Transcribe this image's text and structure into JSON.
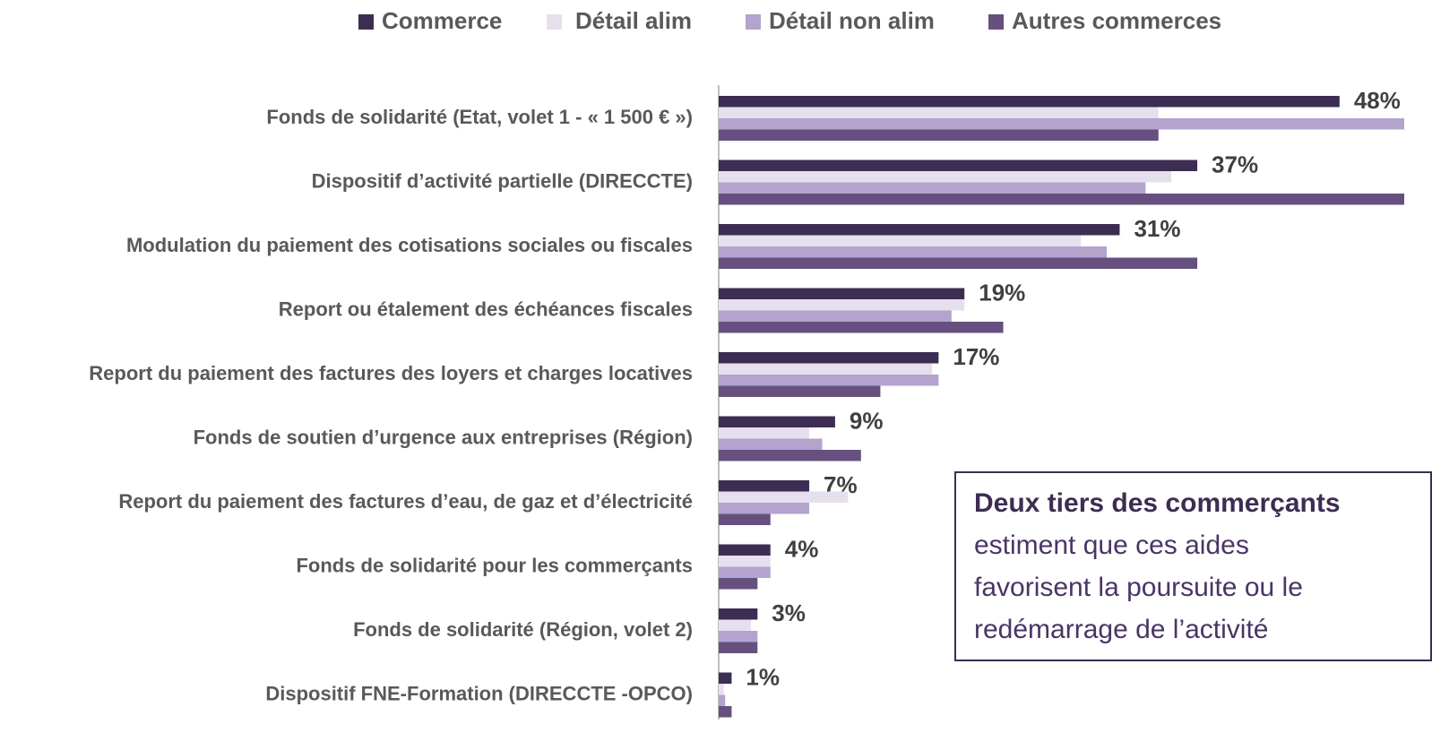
{
  "chart_data": {
    "type": "bar",
    "orientation": "horizontal",
    "categories": [
      "Fonds de solidarité (Etat, volet 1 - « 1 500 € »)",
      "Dispositif d’activité partielle (DIRECCTE)",
      "Modulation du paiement des cotisations sociales ou fiscales",
      "Report ou étalement des échéances fiscales",
      "Report du paiement des factures des loyers et charges locatives",
      "Fonds de soutien d’urgence aux entreprises (Région)",
      "Report du paiement des factures d’eau, de gaz et d’électricité",
      "Fonds de solidarité pour les commerçants",
      "Fonds de solidarité (Région, volet 2)",
      "Dispositif FNE-Formation (DIRECCTE -OPCO)"
    ],
    "series": [
      {
        "name": "Commerce",
        "color": "#3d2d52",
        "values": [
          48,
          37,
          31,
          19,
          17,
          9,
          7,
          4,
          3,
          1
        ],
        "value_labels": [
          "48%",
          "37%",
          "31%",
          "19%",
          "17%",
          "9%",
          "7%",
          "4%",
          "3%",
          "1%"
        ]
      },
      {
        "name": "Détail alim",
        "color": "#e6e0ee",
        "values": [
          34,
          35,
          28,
          19,
          16.5,
          7,
          10,
          4,
          2.5,
          0.4
        ]
      },
      {
        "name": "Détail non alim",
        "color": "#b4a3cc",
        "values": [
          53,
          33,
          30,
          18,
          17,
          8,
          7,
          4,
          3,
          0.5
        ]
      },
      {
        "name": "Autres commerces",
        "color": "#66507f",
        "values": [
          34,
          53,
          37,
          22,
          12.5,
          11,
          4,
          3,
          3,
          1
        ]
      }
    ],
    "xlim": [
      0,
      53
    ],
    "legend": "top",
    "annotation": {
      "title": "Deux tiers des commerçants",
      "lines": [
        "estiment que ces aides",
        "favorisent la poursuite  ou le",
        "redémarrage de l’activité"
      ]
    }
  }
}
